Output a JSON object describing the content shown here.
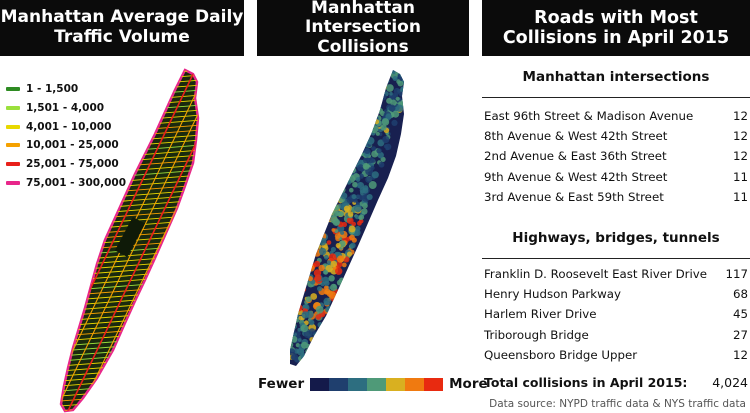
{
  "panels": {
    "traffic": {
      "title_line1": "Manhattan Average Daily",
      "title_line2": "Traffic Volume",
      "legend": [
        {
          "label": "1 - 1,500",
          "color": "#2e8b22"
        },
        {
          "label": "1,501 - 4,000",
          "color": "#9be03c"
        },
        {
          "label": "4,001 - 10,000",
          "color": "#e8d800"
        },
        {
          "label": "10,001 - 25,000",
          "color": "#f5a100"
        },
        {
          "label": "25,001 - 75,000",
          "color": "#e8201a"
        },
        {
          "label": "75,001 - 300,000",
          "color": "#e8268a"
        }
      ]
    },
    "collisions": {
      "title_line1": "Manhattan Intersection",
      "title_line2": "Collisions",
      "legend_low": "Fewer",
      "legend_high": "More",
      "ramp": [
        "#141a4a",
        "#1f3f6e",
        "#2d6e80",
        "#4f9a78",
        "#d9b020",
        "#f07a10",
        "#e82a10"
      ]
    },
    "roads": {
      "title_line1": "Roads with Most",
      "title_line2": "Collisions in April 2015",
      "intersections": {
        "heading": "Manhattan intersections",
        "rows": [
          {
            "name": "East 96th Street & Madison Avenue",
            "value": "12"
          },
          {
            "name": "8th Avenue & West 42th Street",
            "value": "12"
          },
          {
            "name": "2nd Avenue & East 36th Street",
            "value": "12"
          },
          {
            "name": "9th Avenue & West 42th Street",
            "value": "11"
          },
          {
            "name": "3rd Avenue & East 59th Street",
            "value": "11"
          }
        ]
      },
      "highways": {
        "heading": "Highways, bridges, tunnels",
        "rows": [
          {
            "name": "Franklin D. Roosevelt East River Drive",
            "value": "117"
          },
          {
            "name": "Henry Hudson Parkway",
            "value": "68"
          },
          {
            "name": "Harlem River Drive",
            "value": "45"
          },
          {
            "name": "Triborough Bridge",
            "value": "27"
          },
          {
            "name": "Queensboro Bridge Upper",
            "value": "12"
          }
        ]
      },
      "total_label": "Total collisions in April 2015:",
      "total_value": "4,024"
    }
  },
  "source": "Data source: NYPD traffic data & NYS traffic data"
}
